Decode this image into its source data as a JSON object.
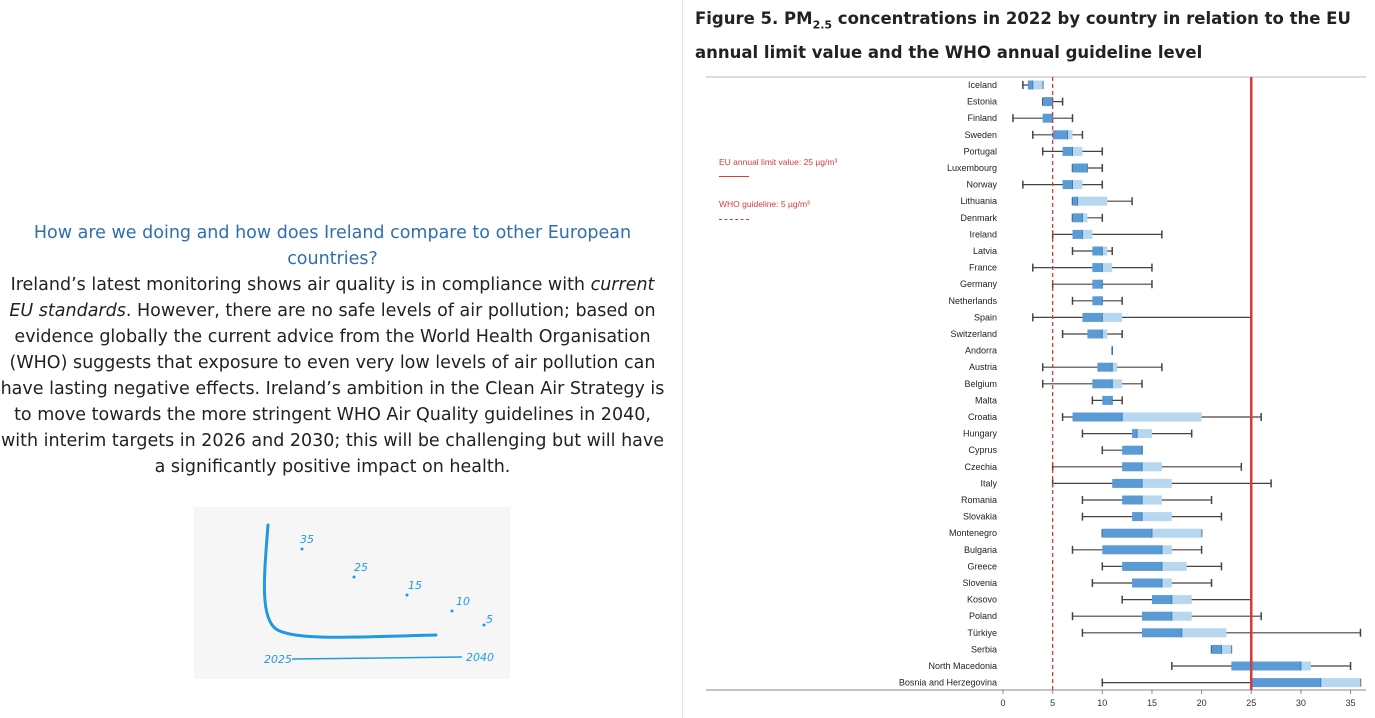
{
  "left_panel": {
    "question": "How are we doing and how does Ireland compare to other European countries?",
    "body_before_em": "Ireland’s latest monitoring shows air quality is in compliance with ",
    "body_em": "current EU standards",
    "body_after_em": ". However, there are no safe levels of air pollution; based on evidence globally the current advice from the World Health Organisation (WHO) suggests that exposure to even very low levels of air pollution can have lasting negative effects. Ireland’s ambition in the Clean Air Strategy is to move towards the more stringent WHO Air Quality guidelines in 2040, with interim targets in 2026 and 2030; this will be challenging but will have a significantly positive impact on health.",
    "sketch_labels": [
      "35",
      "25",
      "15",
      "10",
      "5",
      "2025",
      "2040"
    ]
  },
  "figure": {
    "title_prefix": "Figure 5. PM",
    "title_sub": "2.5",
    "title_suffix": " concentrations in 2022 by country in relation to the EU annual limit value and the WHO annual guideline level",
    "legend_eu": "EU annual limit value: 25 µg/m³",
    "legend_who": "WHO guideline: 5 µg/m³"
  },
  "colors": {
    "box_dark": "#5b9bd5",
    "box_light": "#b6d7ef",
    "whisker": "#444444",
    "limit": "#d43b3b"
  },
  "chart_data": {
    "type": "box",
    "title": "",
    "xlim": [
      0,
      36
    ],
    "xticks": [
      0,
      5,
      10,
      15,
      20,
      25,
      30,
      35
    ],
    "reference_lines": [
      {
        "name": "EU annual limit value",
        "value": 25,
        "style": "solid"
      },
      {
        "name": "WHO guideline",
        "value": 5,
        "style": "dashed"
      }
    ],
    "boxes": [
      {
        "label": "Iceland",
        "min": 2,
        "q1": 2.5,
        "median": 3,
        "q3": 4,
        "max": 4
      },
      {
        "label": "Estonia",
        "min": 4,
        "q1": 4,
        "median": 5,
        "q3": 5,
        "max": 6
      },
      {
        "label": "Finland",
        "min": 1,
        "q1": 4,
        "median": 5,
        "q3": 5,
        "max": 7
      },
      {
        "label": "Sweden",
        "min": 3,
        "q1": 5,
        "median": 6.5,
        "q3": 7,
        "max": 8
      },
      {
        "label": "Portugal",
        "min": 4,
        "q1": 6,
        "median": 7,
        "q3": 8,
        "max": 10
      },
      {
        "label": "Luxembourg",
        "min": 7,
        "q1": 7,
        "median": 8.5,
        "q3": 8.5,
        "max": 10
      },
      {
        "label": "Norway",
        "min": 2,
        "q1": 6,
        "median": 7,
        "q3": 8,
        "max": 10
      },
      {
        "label": "Lithuania",
        "min": 7,
        "q1": 7,
        "median": 7.5,
        "q3": 10.5,
        "max": 13
      },
      {
        "label": "Denmark",
        "min": 7,
        "q1": 7,
        "median": 8,
        "q3": 8.5,
        "max": 10
      },
      {
        "label": "Ireland",
        "min": 5,
        "q1": 7,
        "median": 8,
        "q3": 9,
        "max": 16
      },
      {
        "label": "Latvia",
        "min": 7,
        "q1": 9,
        "median": 10,
        "q3": 10.5,
        "max": 11
      },
      {
        "label": "France",
        "min": 3,
        "q1": 9,
        "median": 10,
        "q3": 11,
        "max": 15
      },
      {
        "label": "Germany",
        "min": 5,
        "q1": 9,
        "median": 10,
        "q3": 10,
        "max": 15
      },
      {
        "label": "Netherlands",
        "min": 7,
        "q1": 9,
        "median": 10,
        "q3": 10,
        "max": 12
      },
      {
        "label": "Spain",
        "min": 3,
        "q1": 8,
        "median": 10,
        "q3": 12,
        "max": 25
      },
      {
        "label": "Switzerland",
        "min": 6,
        "q1": 8.5,
        "median": 10,
        "q3": 10.5,
        "max": 12
      },
      {
        "label": "Andorra",
        "min": 11,
        "q1": 11,
        "median": 11,
        "q3": 11,
        "max": 11
      },
      {
        "label": "Austria",
        "min": 4,
        "q1": 9.5,
        "median": 11,
        "q3": 11.5,
        "max": 16
      },
      {
        "label": "Belgium",
        "min": 4,
        "q1": 9,
        "median": 11,
        "q3": 12,
        "max": 14
      },
      {
        "label": "Malta",
        "min": 9,
        "q1": 10,
        "median": 11,
        "q3": 11,
        "max": 12
      },
      {
        "label": "Croatia",
        "min": 6,
        "q1": 7,
        "median": 12,
        "q3": 20,
        "max": 26
      },
      {
        "label": "Hungary",
        "min": 8,
        "q1": 13,
        "median": 13.5,
        "q3": 15,
        "max": 19
      },
      {
        "label": "Cyprus",
        "min": 10,
        "q1": 12,
        "median": 14,
        "q3": 14,
        "max": 14
      },
      {
        "label": "Czechia",
        "min": 5,
        "q1": 12,
        "median": 14,
        "q3": 16,
        "max": 24
      },
      {
        "label": "Italy",
        "min": 5,
        "q1": 11,
        "median": 14,
        "q3": 17,
        "max": 27
      },
      {
        "label": "Romania",
        "min": 8,
        "q1": 12,
        "median": 14,
        "q3": 16,
        "max": 21
      },
      {
        "label": "Slovakia",
        "min": 8,
        "q1": 13,
        "median": 14,
        "q3": 17,
        "max": 22
      },
      {
        "label": "Montenegro",
        "min": 10,
        "q1": 10,
        "median": 15,
        "q3": 20,
        "max": 20
      },
      {
        "label": "Bulgaria",
        "min": 7,
        "q1": 10,
        "median": 16,
        "q3": 17,
        "max": 20
      },
      {
        "label": "Greece",
        "min": 10,
        "q1": 12,
        "median": 16,
        "q3": 18.5,
        "max": 22
      },
      {
        "label": "Slovenia",
        "min": 9,
        "q1": 13,
        "median": 16,
        "q3": 17,
        "max": 21
      },
      {
        "label": "Kosovo",
        "min": 12,
        "q1": 15,
        "median": 17,
        "q3": 19,
        "max": 25
      },
      {
        "label": "Poland",
        "min": 7,
        "q1": 14,
        "median": 17,
        "q3": 19,
        "max": 26
      },
      {
        "label": "Türkiye",
        "min": 8,
        "q1": 14,
        "median": 18,
        "q3": 22.5,
        "max": 36
      },
      {
        "label": "Serbia",
        "min": 21,
        "q1": 21,
        "median": 22,
        "q3": 23,
        "max": 23
      },
      {
        "label": "North Macedonia",
        "min": 17,
        "q1": 23,
        "median": 30,
        "q3": 31,
        "max": 35
      },
      {
        "label": "Bosnia and Herzegovina",
        "min": 10,
        "q1": 25,
        "median": 32,
        "q3": 36,
        "max": 36
      }
    ]
  }
}
